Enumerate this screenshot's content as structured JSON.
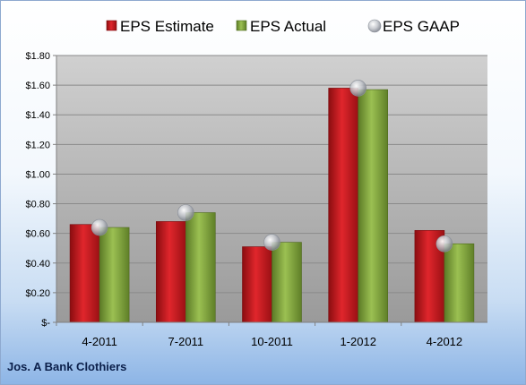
{
  "chart_data": {
    "type": "bar",
    "categories": [
      "4-2011",
      "7-2011",
      "10-2011",
      "1-2012",
      "4-2012"
    ],
    "series": [
      {
        "name": "EPS Estimate",
        "kind": "bar",
        "color": "#c8161d",
        "values": [
          0.66,
          0.68,
          0.51,
          1.58,
          0.62
        ]
      },
      {
        "name": "EPS Actual",
        "kind": "bar",
        "color": "#7ea23c",
        "values": [
          0.64,
          0.74,
          0.54,
          1.57,
          0.53
        ]
      },
      {
        "name": "EPS GAAP",
        "kind": "marker",
        "color": "#b8bcc4",
        "values": [
          0.64,
          0.74,
          0.54,
          1.58,
          0.53
        ]
      }
    ],
    "ylim": [
      0,
      1.8
    ],
    "yticks": [
      0,
      0.2,
      0.4,
      0.6,
      0.8,
      1.0,
      1.2,
      1.4,
      1.6,
      1.8
    ],
    "ytick_labels": [
      "$-",
      "$0.20",
      "$0.40",
      "$0.60",
      "$0.80",
      "$1.00",
      "$1.20",
      "$1.40",
      "$1.60",
      "$1.80"
    ],
    "grid": true,
    "legend_position": "top",
    "plot_background": "#bfbfbf"
  },
  "footer": {
    "company": "Jos. A Bank Clothiers"
  }
}
